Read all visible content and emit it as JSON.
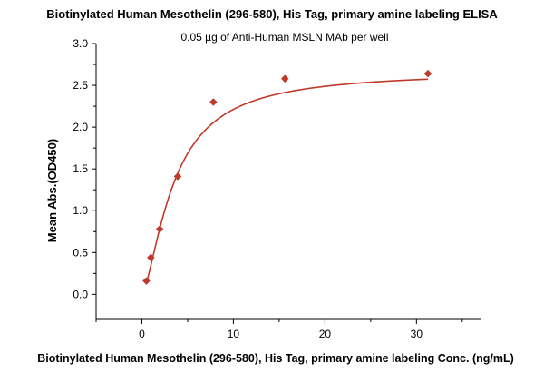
{
  "chart_data": {
    "type": "scatter",
    "title": "Biotinylated Human Mesothelin (296-580), His Tag, primary amine labeling ELISA",
    "subtitle": "0.05 µg of Anti-Human MSLN MAb per well",
    "xlabel": "Biotinylated Human Mesothelin (296-580), His Tag, primary amine labeling Conc. (ng/mL)",
    "ylabel": "Mean Abs.(OD450)",
    "xlim": [
      -5,
      37
    ],
    "ylim": [
      -0.3,
      3.0
    ],
    "xticks": [
      0,
      10,
      20,
      30
    ],
    "yticks": [
      0.0,
      0.5,
      1.0,
      1.5,
      2.0,
      2.5,
      3.0
    ],
    "ytick_labels": [
      "0.0",
      "0.5",
      "1.0",
      "1.5",
      "2.0",
      "2.5",
      "3.0"
    ],
    "grid": false,
    "legend": "none",
    "series": [
      {
        "x": [
          0.49,
          0.98,
          1.95,
          3.91,
          7.81,
          15.63,
          31.25
        ],
        "y": [
          0.16,
          0.44,
          0.78,
          1.41,
          2.3,
          2.58,
          2.64
        ],
        "marker": "diamond",
        "fit": "4PL",
        "color": "#C0392B"
      }
    ]
  }
}
